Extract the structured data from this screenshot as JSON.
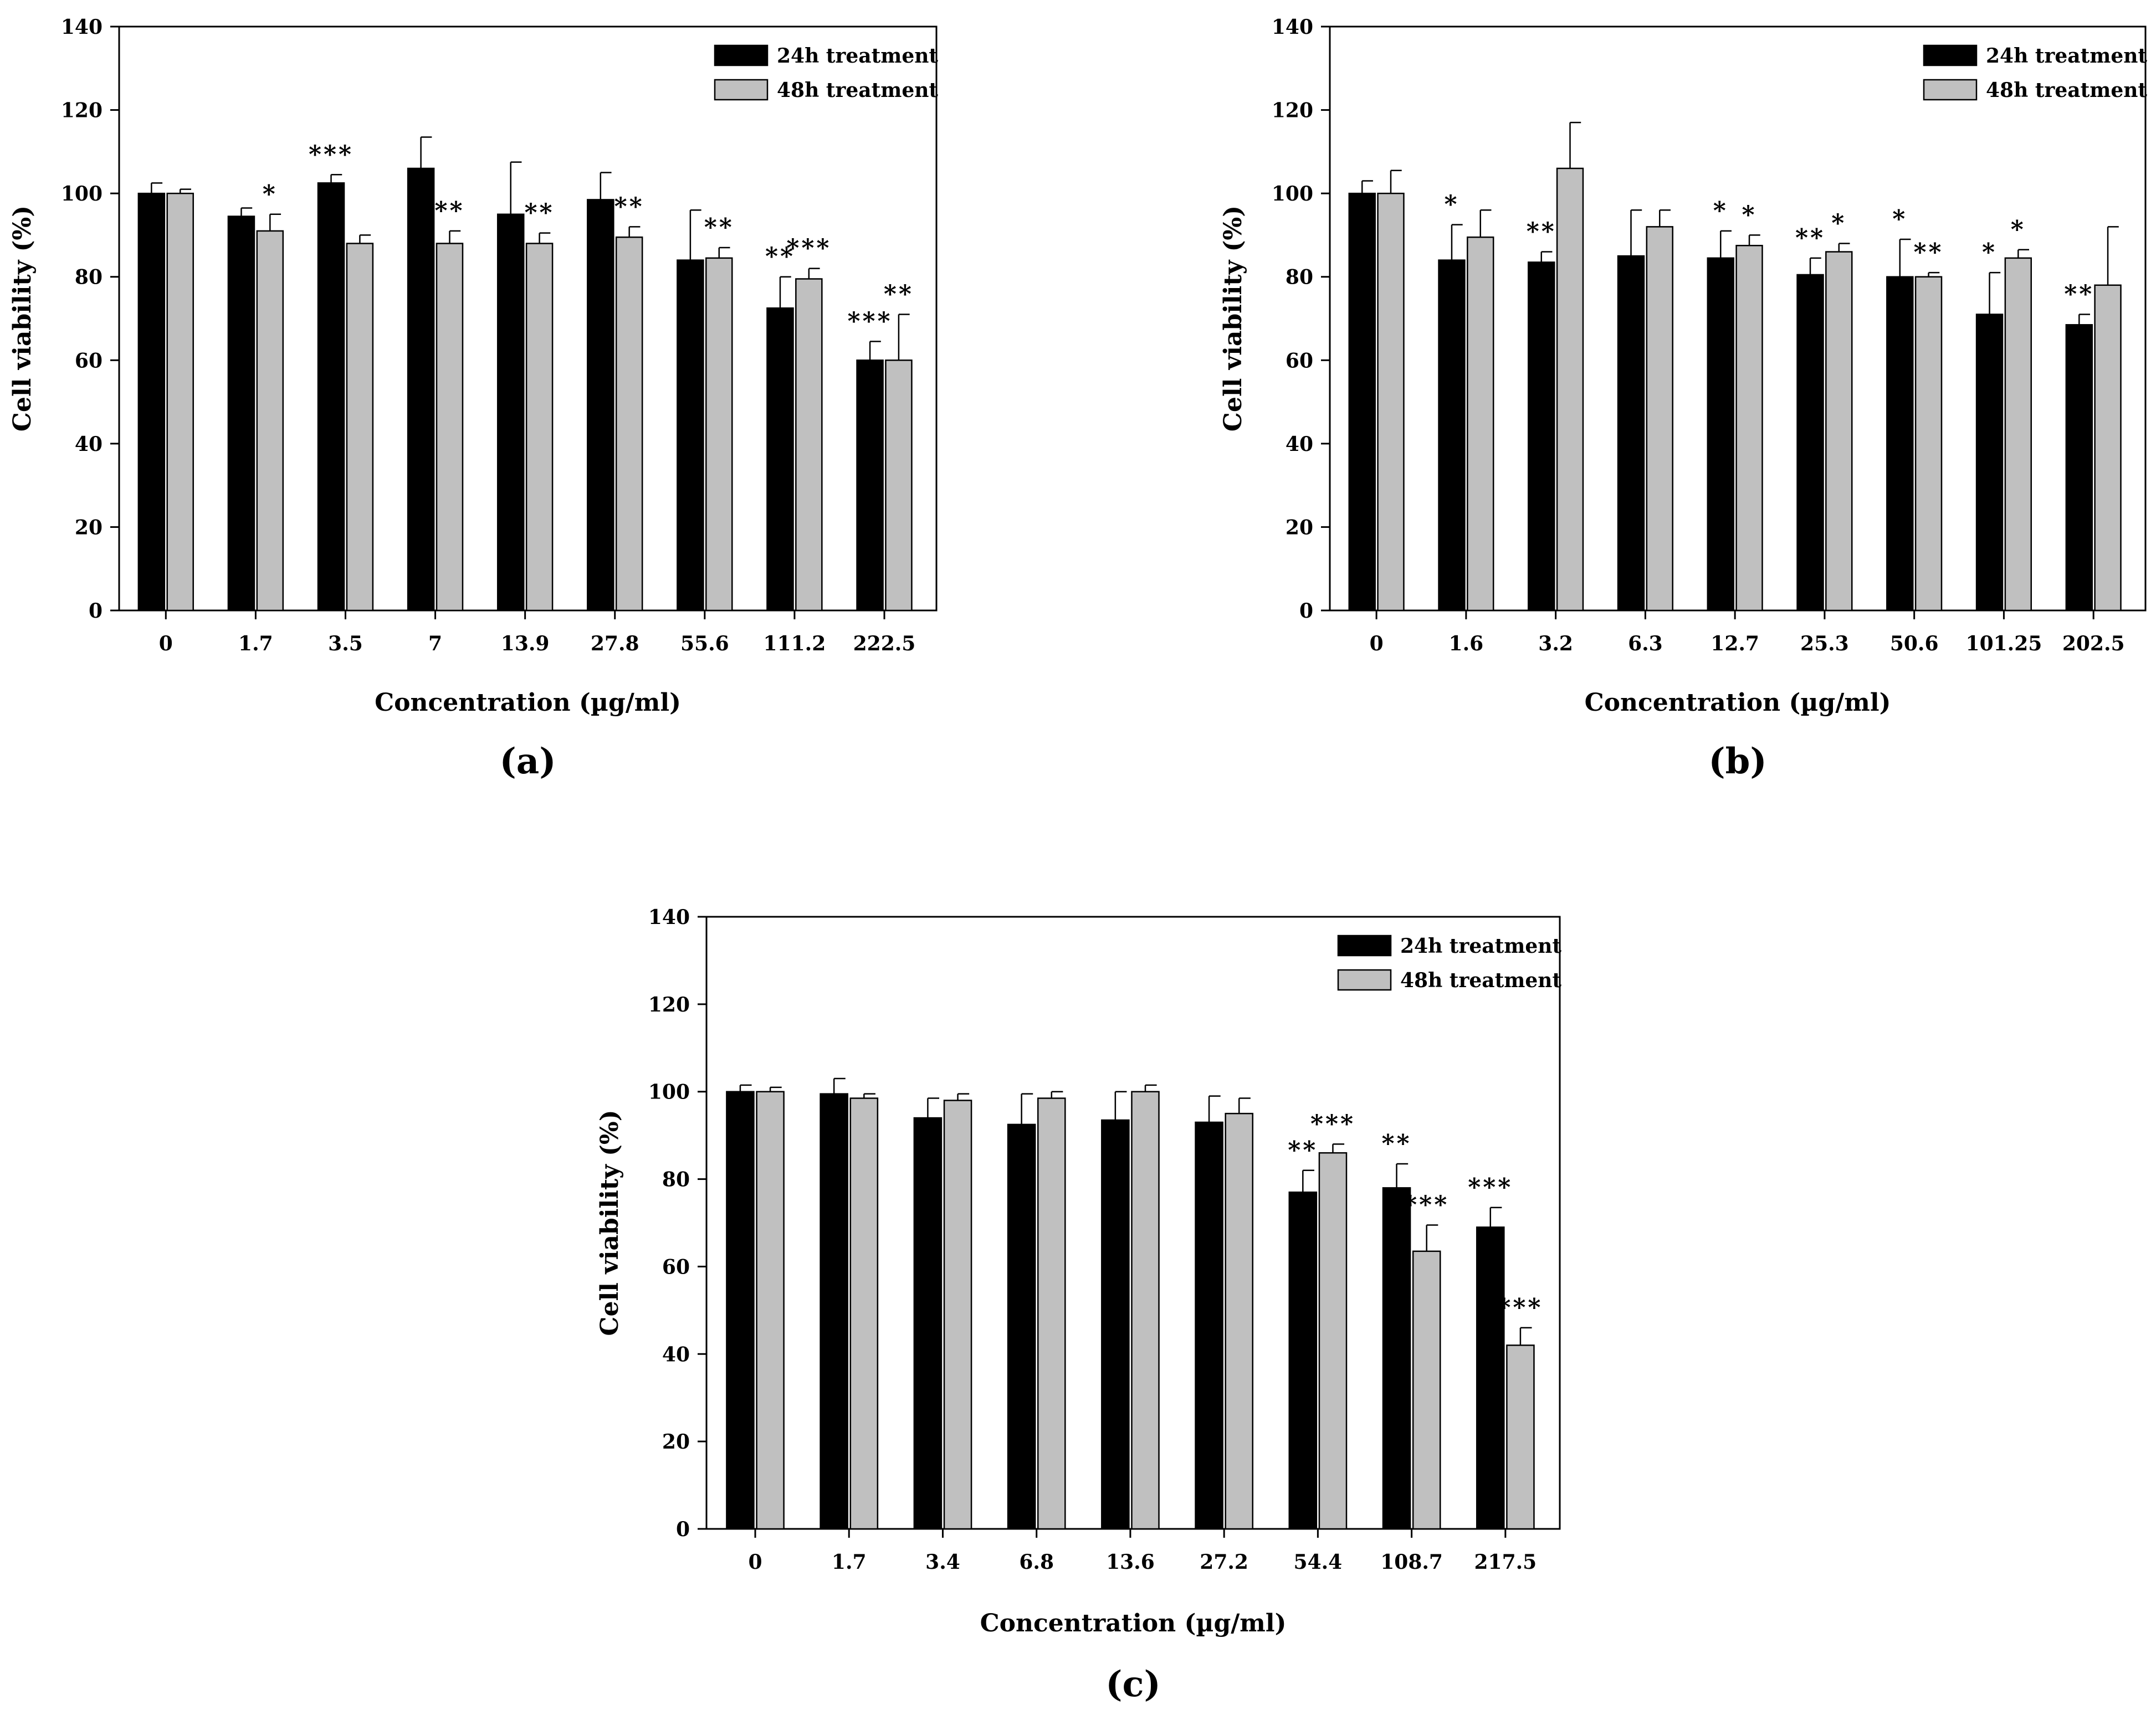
{
  "figure": {
    "legend": [
      "24h treatment",
      "48h treatment"
    ],
    "colors": {
      "series_24h": "#000000",
      "series_48h": "#c0c0c0",
      "bar_stroke": "#000000",
      "background": "#ffffff"
    }
  },
  "chart_data": [
    {
      "type": "bar",
      "panel_label": "(a)",
      "xlabel": "Concentration (µg/ml)",
      "ylabel": "Cell viability (%)",
      "ylim": [
        0,
        140
      ],
      "yticks": [
        "0",
        "20",
        "40",
        "60",
        "80",
        "100",
        "120",
        "140"
      ],
      "categories": [
        "0",
        "1.7",
        "3.5",
        "7",
        "13.9",
        "27.8",
        "55.6",
        "111.2",
        "222.5"
      ],
      "series": [
        {
          "name": "24h treatment",
          "values": [
            100,
            94.5,
            102.5,
            106,
            95,
            98.5,
            84,
            72.5,
            60
          ],
          "errors": [
            2.5,
            2,
            2,
            7.5,
            12.5,
            6.5,
            12,
            7.5,
            4.5
          ],
          "significance": [
            "",
            "",
            "***",
            "",
            "",
            "",
            "",
            "**",
            "***"
          ]
        },
        {
          "name": "48h treatment",
          "values": [
            100,
            91,
            88,
            88,
            88,
            89.5,
            84.5,
            79.5,
            60
          ],
          "errors": [
            1,
            4,
            2,
            3,
            2.5,
            2.5,
            2.5,
            2.5,
            11
          ],
          "significance": [
            "",
            "*",
            "",
            "**",
            "**",
            "**",
            "**",
            "***",
            "**"
          ]
        }
      ]
    },
    {
      "type": "bar",
      "panel_label": "(b)",
      "xlabel": "Concentration (µg/ml)",
      "ylabel": "Cell viability (%)",
      "ylim": [
        0,
        140
      ],
      "yticks": [
        "0",
        "20",
        "40",
        "60",
        "80",
        "100",
        "120",
        "140"
      ],
      "categories": [
        "0",
        "1.6",
        "3.2",
        "6.3",
        "12.7",
        "25.3",
        "50.6",
        "101.25",
        "202.5"
      ],
      "series": [
        {
          "name": "24h treatment",
          "values": [
            100,
            84,
            83.5,
            85,
            84.5,
            80.5,
            80,
            71,
            68.5
          ],
          "errors": [
            3,
            8.5,
            2.5,
            11,
            6.5,
            4,
            9,
            10,
            2.5
          ],
          "significance": [
            "",
            "*",
            "**",
            "",
            "*",
            "**",
            "*",
            "*",
            "**"
          ]
        },
        {
          "name": "48h treatment",
          "values": [
            100,
            89.5,
            106,
            92,
            87.5,
            86,
            80,
            84.5,
            78
          ],
          "errors": [
            5.5,
            6.5,
            11,
            4,
            2.5,
            2,
            1,
            2,
            14
          ],
          "significance": [
            "",
            "",
            "",
            "",
            "*",
            "*",
            "**",
            "*",
            ""
          ]
        }
      ]
    },
    {
      "type": "bar",
      "panel_label": "(c)",
      "xlabel": "Concentration (µg/ml)",
      "ylabel": "Cell viability (%)",
      "ylim": [
        0,
        140
      ],
      "yticks": [
        "0",
        "20",
        "40",
        "60",
        "80",
        "100",
        "120",
        "140"
      ],
      "categories": [
        "0",
        "1.7",
        "3.4",
        "6.8",
        "13.6",
        "27.2",
        "54.4",
        "108.7",
        "217.5"
      ],
      "series": [
        {
          "name": "24h treatment",
          "values": [
            100,
            99.5,
            94,
            92.5,
            93.5,
            93,
            77,
            78,
            69
          ],
          "errors": [
            1.5,
            3.5,
            4.5,
            7,
            6.5,
            6,
            5,
            5.5,
            4.5
          ],
          "significance": [
            "",
            "",
            "",
            "",
            "",
            "",
            "**",
            "**",
            "***"
          ]
        },
        {
          "name": "48h treatment",
          "values": [
            100,
            98.5,
            98,
            98.5,
            100,
            95,
            86,
            63.5,
            42
          ],
          "errors": [
            1,
            1,
            1.5,
            1.5,
            1.5,
            3.5,
            2,
            6,
            4
          ],
          "significance": [
            "",
            "",
            "",
            "",
            "",
            "",
            "***",
            "***",
            "***"
          ]
        }
      ]
    }
  ]
}
